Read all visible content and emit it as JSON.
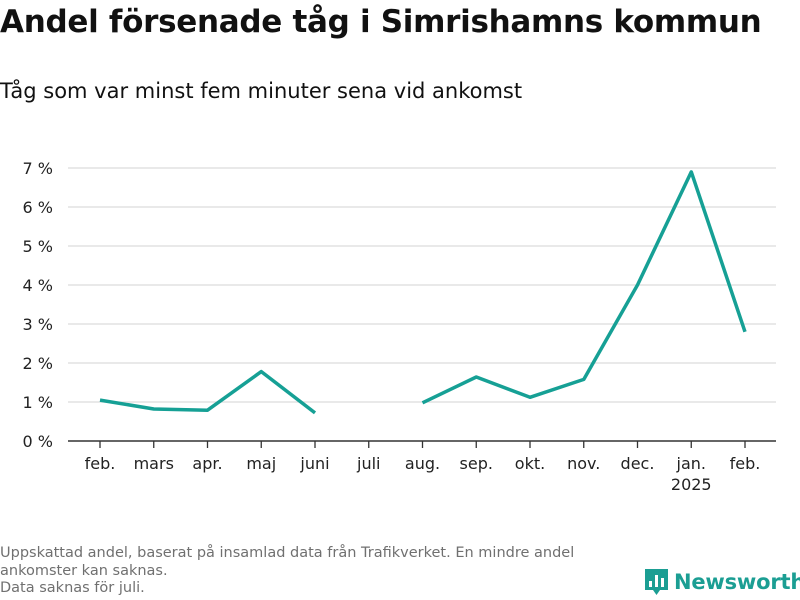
{
  "chart_data": {
    "type": "line",
    "title": "Andel försenade tåg i Simrishamns kommun",
    "subtitle": "Tåg som var minst fem minuter sena vid ankomst",
    "categories": [
      "feb.",
      "mars",
      "apr.",
      "maj",
      "juni",
      "juli",
      "aug.",
      "sep.",
      "okt.",
      "nov.",
      "dec.",
      "jan.",
      "feb."
    ],
    "year_labels": [
      "",
      "",
      "",
      "",
      "",
      "",
      "",
      "",
      "",
      "",
      "",
      "2025",
      ""
    ],
    "series": [
      {
        "values": [
          1.05,
          0.82,
          0.79,
          1.78,
          0.72,
          null,
          0.98,
          1.64,
          1.12,
          1.58,
          4.0,
          6.9,
          2.8
        ]
      }
    ],
    "yticks": [
      "0 %",
      "1 %",
      "2 %",
      "3 %",
      "4 %",
      "5 %",
      "6 %",
      "7 %"
    ],
    "ylim": [
      0,
      7
    ],
    "grid": true,
    "line_color": "#16a095",
    "grid_color": "#dcdcdc",
    "footnote": [
      "Uppskattad andel, baserat på insamlad data från Trafikverket. En mindre andel",
      "ankomster kan saknas.",
      "Data saknas för juli."
    ],
    "brand": "Newsworthy",
    "brand_color": "#1b9e93"
  }
}
